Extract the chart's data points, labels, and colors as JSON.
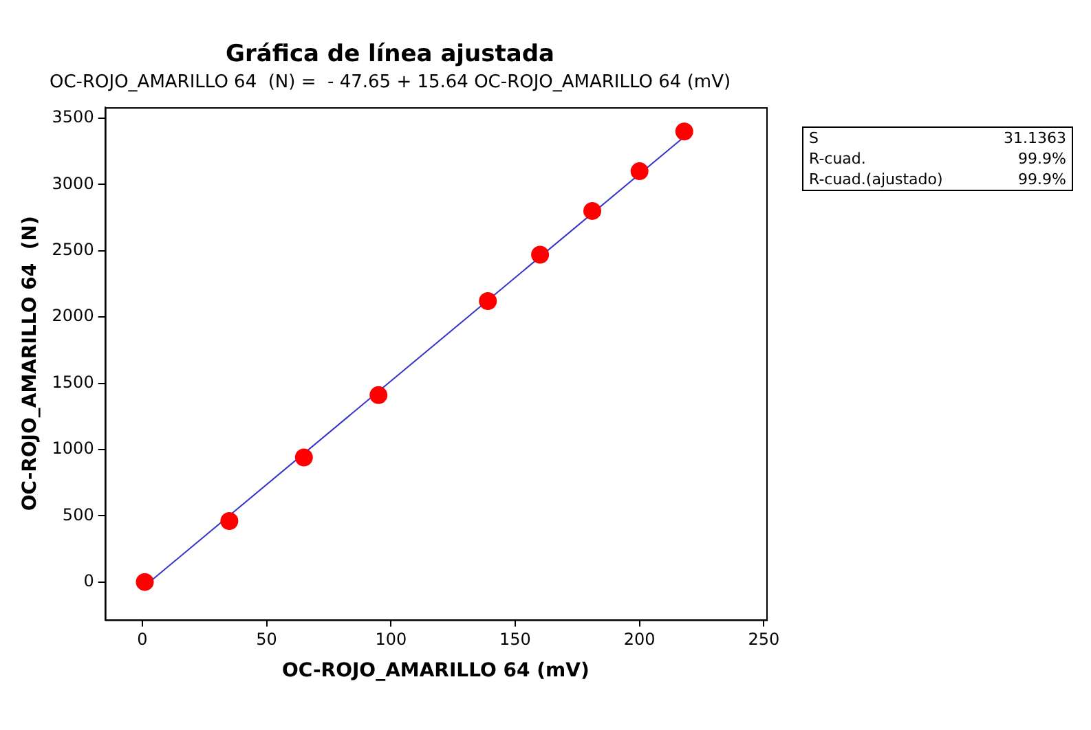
{
  "chart_data": {
    "type": "scatter",
    "title": "Gráfica de línea ajustada",
    "subtitle": "OC-ROJO_AMARILLO 64  (N) =  - 47.65 + 15.64 OC-ROJO_AMARILLO 64 (mV)",
    "xlabel": "OC-ROJO_AMARILLO 64 (mV)",
    "ylabel": "OC-ROJO_AMARILLO 64  (N)",
    "annotations": [
      "S",
      "31.1363",
      "R-cuad.",
      "99.9%",
      "R-cuad.(ajustado)",
      "99.9%"
    ],
    "x": [
      1,
      35,
      65,
      95,
      139,
      160,
      181,
      200,
      218
    ],
    "series": [
      {
        "color": "#ff0000",
        "marker": "circle",
        "values": [
          0,
          460,
          940,
          1410,
          2120,
          2470,
          2800,
          3100,
          3400
        ]
      },
      {
        "type": "line",
        "color": "#3333cc",
        "marker": "none",
        "x": [
          1,
          218
        ],
        "values": [
          -30,
          3360
        ]
      }
    ],
    "xlim": [
      -15,
      251
    ],
    "xticks": [
      0,
      50,
      100,
      150,
      200,
      250
    ],
    "ylim": [
      -285,
      3583
    ],
    "yticks": [
      0,
      500,
      1000,
      1500,
      2000,
      2500,
      3000,
      3500
    ],
    "legend": false
  }
}
